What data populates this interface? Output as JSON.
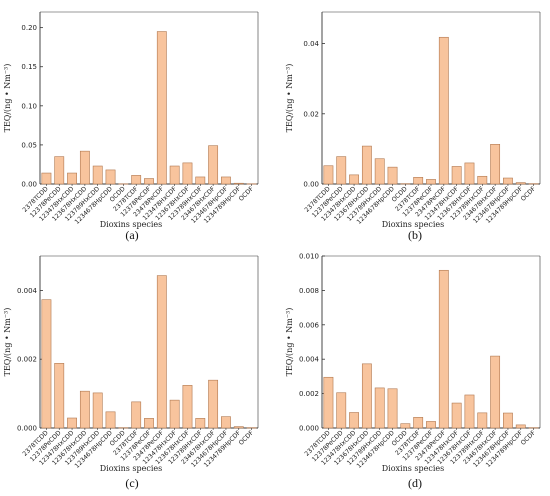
{
  "style": {
    "bar_fill": "#F8C49D",
    "bar_stroke": "#B07850",
    "axis_color": "#333333"
  },
  "categories": [
    "2378TCDD",
    "12378PeCDD",
    "123478HxCDD",
    "123678HxCDD",
    "123789HxCDD",
    "1234678HpCDD",
    "OCDD",
    "2378TCDF",
    "12378PeCDF",
    "23478PeCDF",
    "123478HxCDF",
    "123678HxCDF",
    "123789HxCDF",
    "234678HxCDF",
    "1234678HpCDF",
    "1234789HpCDF",
    "OCDF"
  ],
  "chart_data": [
    {
      "type": "bar",
      "panel_label": "(a)",
      "xlabel": "Dioxins species",
      "ylabel": "TEQ/(ng • Nm⁻³)",
      "ylim": [
        0,
        0.22
      ],
      "yticks": [
        "0.00",
        "0.05",
        "0.10",
        "0.15",
        "0.20"
      ],
      "ytick_values": [
        0,
        0.05,
        0.1,
        0.15,
        0.2
      ],
      "values": [
        0.014,
        0.035,
        0.014,
        0.042,
        0.023,
        0.018,
        0.0003,
        0.011,
        0.007,
        0.195,
        0.023,
        0.027,
        0.009,
        0.049,
        0.009,
        0.001,
        0.0003
      ]
    },
    {
      "type": "bar",
      "panel_label": "(b)",
      "xlabel": "Dioxins species",
      "ylabel": "TEQ/(ng • Nm⁻³)",
      "ylim": [
        0,
        0.049
      ],
      "yticks": [
        "0.00",
        "0.02",
        "0.04"
      ],
      "ytick_values": [
        0,
        0.02,
        0.04
      ],
      "values": [
        0.0052,
        0.0078,
        0.0026,
        0.0108,
        0.0072,
        0.0048,
        0.0001,
        0.0019,
        0.0013,
        0.0418,
        0.005,
        0.006,
        0.0022,
        0.0113,
        0.0017,
        0.0004,
        0.0001
      ]
    },
    {
      "type": "bar",
      "panel_label": "(c)",
      "xlabel": "Dioxins species",
      "ylabel": "TEQ/(ng • Nm⁻³)",
      "ylim": [
        0,
        0.005
      ],
      "yticks": [
        "0.000",
        "0.002",
        "0.004"
      ],
      "ytick_values": [
        0,
        0.002,
        0.004
      ],
      "values": [
        0.00373,
        0.00188,
        0.00029,
        0.00107,
        0.00102,
        0.00047,
        1e-05,
        0.00076,
        0.00028,
        0.00443,
        0.00081,
        0.00124,
        0.00028,
        0.00139,
        0.00033,
        4e-05,
        1e-05
      ]
    },
    {
      "type": "bar",
      "panel_label": "(d)",
      "xlabel": "Dioxins species",
      "ylabel": "TEQ/(ng • Nm⁻³)",
      "ylim": [
        0,
        0.01
      ],
      "yticks": [
        "0.000",
        "0.002",
        "0.004",
        "0.006",
        "0.008",
        "0.010"
      ],
      "ytick_values": [
        0,
        0.002,
        0.004,
        0.006,
        0.008,
        0.01
      ],
      "values": [
        0.00295,
        0.00205,
        0.0009,
        0.00373,
        0.00233,
        0.00228,
        0.00025,
        0.00062,
        0.00038,
        0.00917,
        0.00145,
        0.00192,
        0.00088,
        0.00418,
        0.00087,
        0.00018,
        2e-05
      ]
    }
  ]
}
